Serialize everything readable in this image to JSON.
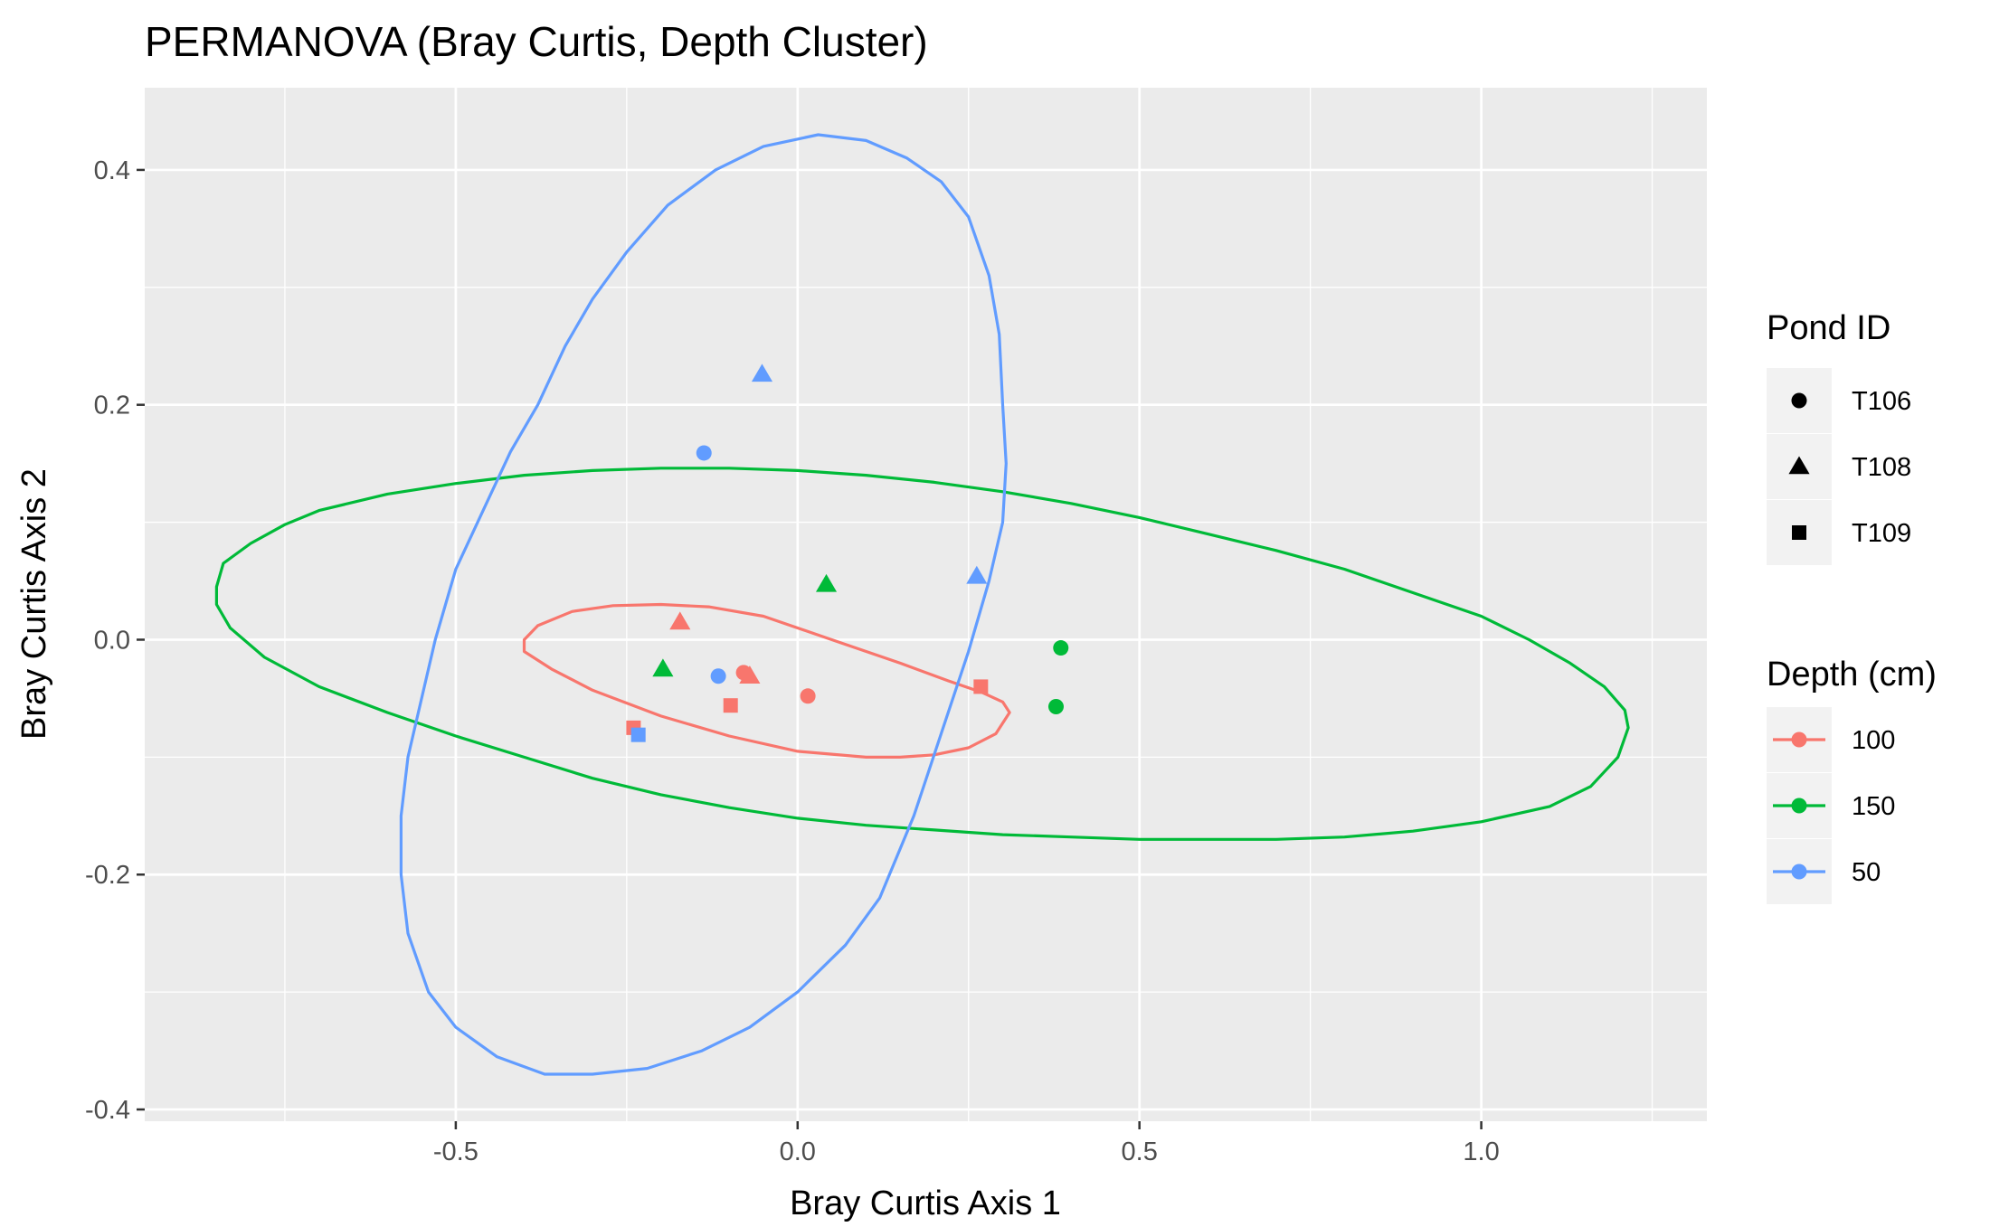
{
  "chart_data": {
    "type": "scatter",
    "title": "PERMANOVA (Bray Curtis, Depth Cluster)",
    "xlabel": "Bray Curtis Axis 1",
    "ylabel": "Bray Curtis Axis 2",
    "xlim": [
      -0.955,
      1.33
    ],
    "ylim": [
      -0.41,
      0.47
    ],
    "x_ticks": [
      -0.5,
      0.0,
      0.5,
      1.0
    ],
    "x_tick_labels": [
      "-0.5",
      "0.0",
      "0.5",
      "1.0"
    ],
    "y_ticks": [
      -0.4,
      -0.2,
      0.0,
      0.2,
      0.4
    ],
    "y_tick_labels": [
      "-0.4",
      "-0.2",
      "0.0",
      "0.2",
      "0.4"
    ],
    "grid": true,
    "panel_background": "#ebebeb",
    "legend_position": "right",
    "legends": [
      {
        "title": "Pond ID",
        "aesthetic": "shape",
        "entries": [
          {
            "label": "T106",
            "shape": "circle"
          },
          {
            "label": "T108",
            "shape": "triangle"
          },
          {
            "label": "T109",
            "shape": "square"
          }
        ]
      },
      {
        "title": "Depth (cm)",
        "aesthetic": "color",
        "entries": [
          {
            "label": "100",
            "color": "#F8766D"
          },
          {
            "label": "150",
            "color": "#00BA38"
          },
          {
            "label": "50",
            "color": "#619CFF"
          }
        ]
      }
    ],
    "points": [
      {
        "x": -0.079,
        "y": -0.028,
        "pond": "T106",
        "depth": "100"
      },
      {
        "x": 0.015,
        "y": -0.048,
        "pond": "T106",
        "depth": "100"
      },
      {
        "x": -0.172,
        "y": 0.015,
        "pond": "T108",
        "depth": "100"
      },
      {
        "x": -0.07,
        "y": -0.031,
        "pond": "T108",
        "depth": "100"
      },
      {
        "x": -0.098,
        "y": -0.056,
        "pond": "T109",
        "depth": "100"
      },
      {
        "x": 0.268,
        "y": -0.04,
        "pond": "T109",
        "depth": "100"
      },
      {
        "x": -0.24,
        "y": -0.075,
        "pond": "T109",
        "depth": "100"
      },
      {
        "x": 0.385,
        "y": -0.007,
        "pond": "T106",
        "depth": "150"
      },
      {
        "x": 0.378,
        "y": -0.057,
        "pond": "T106",
        "depth": "150"
      },
      {
        "x": -0.197,
        "y": -0.025,
        "pond": "T108",
        "depth": "150"
      },
      {
        "x": 0.042,
        "y": 0.047,
        "pond": "T108",
        "depth": "150"
      },
      {
        "x": -0.137,
        "y": 0.159,
        "pond": "T106",
        "depth": "50"
      },
      {
        "x": -0.116,
        "y": -0.031,
        "pond": "T106",
        "depth": "50"
      },
      {
        "x": -0.052,
        "y": 0.226,
        "pond": "T108",
        "depth": "50"
      },
      {
        "x": 0.262,
        "y": 0.054,
        "pond": "T108",
        "depth": "50"
      },
      {
        "x": -0.233,
        "y": -0.081,
        "pond": "T109",
        "depth": "50"
      }
    ],
    "ellipses": [
      {
        "depth": "100",
        "path": [
          [
            0.31,
            -0.062
          ],
          [
            0.29,
            -0.08
          ],
          [
            0.25,
            -0.092
          ],
          [
            0.2,
            -0.098
          ],
          [
            0.15,
            -0.1
          ],
          [
            0.1,
            -0.1
          ],
          [
            0.0,
            -0.095
          ],
          [
            -0.1,
            -0.082
          ],
          [
            -0.2,
            -0.065
          ],
          [
            -0.3,
            -0.043
          ],
          [
            -0.36,
            -0.025
          ],
          [
            -0.4,
            -0.01
          ],
          [
            -0.4,
            0.0
          ],
          [
            -0.38,
            0.012
          ],
          [
            -0.33,
            0.024
          ],
          [
            -0.27,
            0.029
          ],
          [
            -0.2,
            0.03
          ],
          [
            -0.13,
            0.028
          ],
          [
            -0.05,
            0.02
          ],
          [
            0.05,
            0.0
          ],
          [
            0.15,
            -0.02
          ],
          [
            0.22,
            -0.035
          ],
          [
            0.27,
            -0.045
          ],
          [
            0.3,
            -0.053
          ],
          [
            0.31,
            -0.062
          ]
        ]
      },
      {
        "depth": "150",
        "path": [
          [
            -0.85,
            0.045
          ],
          [
            -0.84,
            0.065
          ],
          [
            -0.8,
            0.082
          ],
          [
            -0.75,
            0.098
          ],
          [
            -0.7,
            0.11
          ],
          [
            -0.6,
            0.124
          ],
          [
            -0.5,
            0.133
          ],
          [
            -0.4,
            0.14
          ],
          [
            -0.3,
            0.144
          ],
          [
            -0.2,
            0.146
          ],
          [
            -0.1,
            0.146
          ],
          [
            0.0,
            0.144
          ],
          [
            0.1,
            0.14
          ],
          [
            0.2,
            0.134
          ],
          [
            0.3,
            0.126
          ],
          [
            0.4,
            0.116
          ],
          [
            0.5,
            0.104
          ],
          [
            0.6,
            0.09
          ],
          [
            0.7,
            0.076
          ],
          [
            0.8,
            0.06
          ],
          [
            0.9,
            0.04
          ],
          [
            1.0,
            0.02
          ],
          [
            1.07,
            0.0
          ],
          [
            1.13,
            -0.02
          ],
          [
            1.18,
            -0.04
          ],
          [
            1.21,
            -0.06
          ],
          [
            1.215,
            -0.075
          ],
          [
            1.2,
            -0.1
          ],
          [
            1.16,
            -0.125
          ],
          [
            1.1,
            -0.142
          ],
          [
            1.0,
            -0.155
          ],
          [
            0.9,
            -0.163
          ],
          [
            0.8,
            -0.168
          ],
          [
            0.7,
            -0.17
          ],
          [
            0.6,
            -0.17
          ],
          [
            0.5,
            -0.17
          ],
          [
            0.4,
            -0.168
          ],
          [
            0.3,
            -0.166
          ],
          [
            0.2,
            -0.162
          ],
          [
            0.1,
            -0.158
          ],
          [
            0.0,
            -0.152
          ],
          [
            -0.1,
            -0.143
          ],
          [
            -0.2,
            -0.132
          ],
          [
            -0.3,
            -0.118
          ],
          [
            -0.4,
            -0.1
          ],
          [
            -0.5,
            -0.082
          ],
          [
            -0.6,
            -0.062
          ],
          [
            -0.7,
            -0.04
          ],
          [
            -0.78,
            -0.015
          ],
          [
            -0.83,
            0.01
          ],
          [
            -0.85,
            0.03
          ],
          [
            -0.85,
            0.045
          ]
        ]
      },
      {
        "depth": "50",
        "path": [
          [
            0.3,
            0.2
          ],
          [
            0.305,
            0.15
          ],
          [
            0.3,
            0.1
          ],
          [
            0.28,
            0.05
          ],
          [
            0.25,
            -0.01
          ],
          [
            0.21,
            -0.08
          ],
          [
            0.17,
            -0.15
          ],
          [
            0.12,
            -0.22
          ],
          [
            0.07,
            -0.26
          ],
          [
            0.0,
            -0.3
          ],
          [
            -0.07,
            -0.33
          ],
          [
            -0.14,
            -0.35
          ],
          [
            -0.22,
            -0.365
          ],
          [
            -0.3,
            -0.37
          ],
          [
            -0.37,
            -0.37
          ],
          [
            -0.44,
            -0.355
          ],
          [
            -0.5,
            -0.33
          ],
          [
            -0.54,
            -0.3
          ],
          [
            -0.57,
            -0.25
          ],
          [
            -0.58,
            -0.2
          ],
          [
            -0.58,
            -0.15
          ],
          [
            -0.57,
            -0.1
          ],
          [
            -0.55,
            -0.05
          ],
          [
            -0.53,
            0.0
          ],
          [
            -0.5,
            0.06
          ],
          [
            -0.46,
            0.11
          ],
          [
            -0.42,
            0.16
          ],
          [
            -0.38,
            0.2
          ],
          [
            -0.34,
            0.25
          ],
          [
            -0.3,
            0.29
          ],
          [
            -0.25,
            0.33
          ],
          [
            -0.19,
            0.37
          ],
          [
            -0.12,
            0.4
          ],
          [
            -0.05,
            0.42
          ],
          [
            0.03,
            0.43
          ],
          [
            0.1,
            0.425
          ],
          [
            0.16,
            0.41
          ],
          [
            0.21,
            0.39
          ],
          [
            0.25,
            0.36
          ],
          [
            0.28,
            0.31
          ],
          [
            0.295,
            0.26
          ],
          [
            0.3,
            0.2
          ]
        ]
      }
    ]
  }
}
